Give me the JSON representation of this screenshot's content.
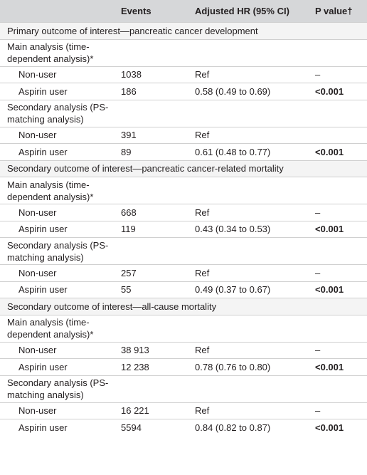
{
  "header": {
    "col1": "",
    "col2": "Events",
    "col3": "Adjusted HR (95% CI)",
    "col4": "P value†"
  },
  "rows": [
    {
      "type": "outcome",
      "label": "Primary outcome of interest—pancreatic cancer development"
    },
    {
      "type": "analysis",
      "label": "Main analysis (time-dependent analysis)*"
    },
    {
      "type": "data",
      "label": "Non-user",
      "events": "1038",
      "hr": "Ref",
      "p": "–"
    },
    {
      "type": "data",
      "label": "Aspirin user",
      "events": "186",
      "hr": "0.58 (0.49 to 0.69)",
      "p": "<0.001"
    },
    {
      "type": "analysis",
      "label": "Secondary analysis (PS-matching analysis)"
    },
    {
      "type": "data",
      "label": "Non-user",
      "events": "391",
      "hr": "Ref",
      "p": ""
    },
    {
      "type": "data",
      "label": "Aspirin user",
      "events": "89",
      "hr": "0.61 (0.48 to 0.77)",
      "p": "<0.001"
    },
    {
      "type": "outcome",
      "label": "Secondary outcome of interest—pancreatic cancer-related mortality"
    },
    {
      "type": "analysis",
      "label": "Main analysis (time-dependent analysis)*"
    },
    {
      "type": "data",
      "label": "Non-user",
      "events": "668",
      "hr": "Ref",
      "p": "–"
    },
    {
      "type": "data",
      "label": "Aspirin user",
      "events": "119",
      "hr": "0.43 (0.34 to 0.53)",
      "p": "<0.001"
    },
    {
      "type": "analysis",
      "label": "Secondary analysis (PS-matching analysis)"
    },
    {
      "type": "data",
      "label": "Non-user",
      "events": "257",
      "hr": "Ref",
      "p": "–"
    },
    {
      "type": "data",
      "label": "Aspirin user",
      "events": "55",
      "hr": "0.49 (0.37 to 0.67)",
      "p": "<0.001"
    },
    {
      "type": "outcome",
      "label": "Secondary outcome of interest—all-cause mortality"
    },
    {
      "type": "analysis",
      "label": "Main analysis (time-dependent analysis)*"
    },
    {
      "type": "data",
      "label": "Non-user",
      "events": "38 913",
      "hr": "Ref",
      "p": "–"
    },
    {
      "type": "data",
      "label": "Aspirin user",
      "events": "12 238",
      "hr": "0.78 (0.76 to 0.80)",
      "p": "<0.001"
    },
    {
      "type": "analysis",
      "label": "Secondary analysis (PS-matching analysis)"
    },
    {
      "type": "data",
      "label": "Non-user",
      "events": "16 221",
      "hr": "Ref",
      "p": "–"
    },
    {
      "type": "data",
      "label": "Aspirin user",
      "events": "5594",
      "hr": "0.84 (0.82 to 0.87)",
      "p": "<0.001"
    }
  ]
}
